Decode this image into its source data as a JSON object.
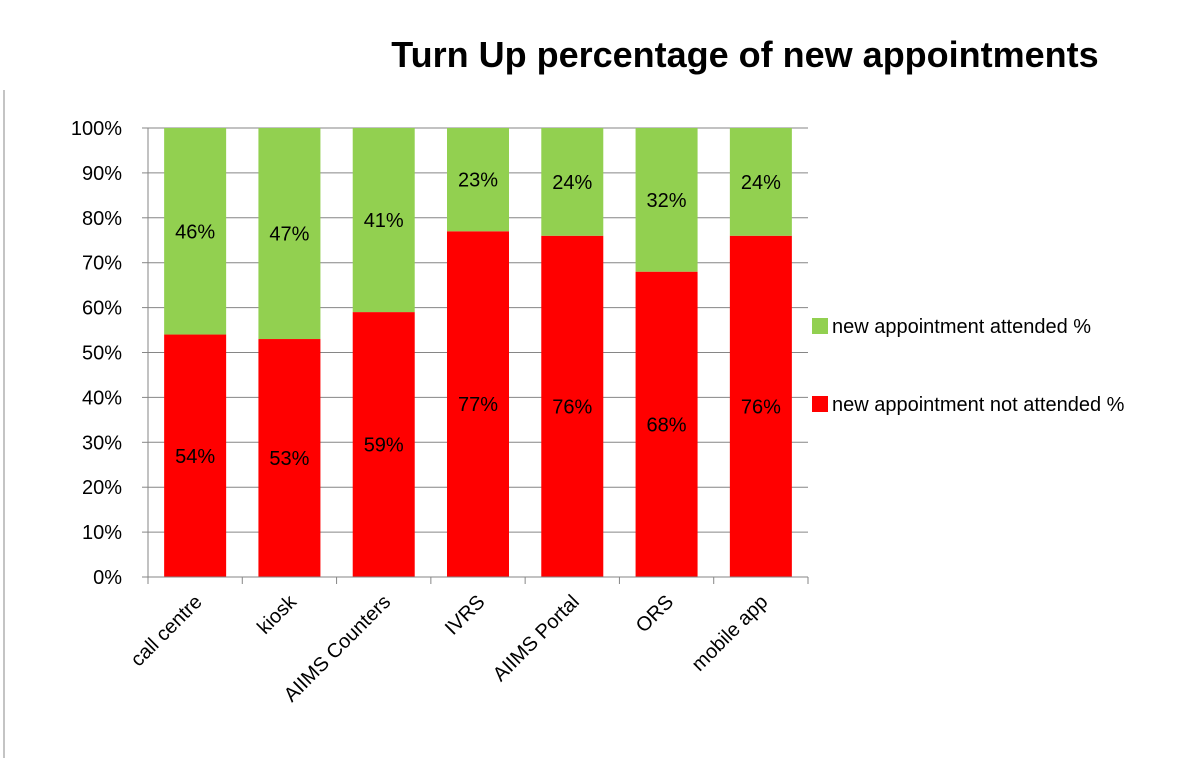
{
  "chart_data": {
    "type": "bar",
    "stacked": true,
    "percent_stacked": true,
    "title": "Turn Up percentage of new appointments",
    "xlabel": "",
    "ylabel": "",
    "ylim": [
      0,
      100
    ],
    "y_ticks": [
      "0%",
      "10%",
      "20%",
      "30%",
      "40%",
      "50%",
      "60%",
      "70%",
      "80%",
      "90%",
      "100%"
    ],
    "grid": true,
    "legend_position": "right",
    "categories": [
      "call centre",
      "kiosk",
      "AIIMS Counters",
      "IVRS",
      "AIIMS Portal",
      "ORS",
      "mobile app"
    ],
    "series": [
      {
        "name": "new appointment not attended %",
        "color": "#ff0000",
        "values": [
          54,
          53,
          59,
          77,
          76,
          68,
          76
        ],
        "labels": [
          "54%",
          "53%",
          "59%",
          "77%",
          "76%",
          "68%",
          "76%"
        ]
      },
      {
        "name": "new appointment attended %",
        "color": "#92d050",
        "values": [
          46,
          47,
          41,
          23,
          24,
          32,
          24
        ],
        "labels": [
          "46%",
          "47%",
          "41%",
          "23%",
          "24%",
          "32%",
          "24%"
        ]
      }
    ],
    "legend": [
      {
        "name": "new appointment attended %",
        "color": "#92d050"
      },
      {
        "name": "new appointment not attended %",
        "color": "#ff0000"
      }
    ]
  }
}
